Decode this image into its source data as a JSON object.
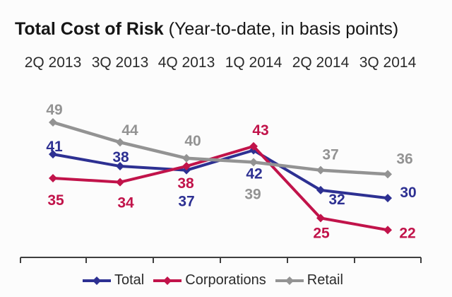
{
  "header": {
    "title_bold": "Total Cost of Risk",
    "title_rest": " (Year-to-date, in basis points)"
  },
  "chart_data": {
    "type": "line",
    "title": "Total Cost of Risk (Year-to-date, in basis points)",
    "categories": [
      "2Q 2013",
      "3Q 2013",
      "4Q 2013",
      "1Q 2014",
      "2Q 2014",
      "3Q 2014"
    ],
    "series": [
      {
        "name": "Total",
        "color": "#2d3092",
        "values": [
          41,
          38,
          37,
          42,
          32,
          30
        ]
      },
      {
        "name": "Corporations",
        "color": "#c1134a",
        "values": [
          35,
          34,
          38,
          43,
          25,
          22
        ]
      },
      {
        "name": "Retail",
        "color": "#939393",
        "values": [
          49,
          44,
          40,
          39,
          37,
          36
        ]
      }
    ],
    "legend_position": "bottom",
    "legend_labels": [
      "Total",
      "Corporations",
      "Retail"
    ],
    "grid": false,
    "value_labels_shown": true,
    "category_labels_position": "top",
    "x_axis_line_position": "bottom",
    "y_implied_range": [
      20,
      50
    ]
  },
  "colors": {
    "axis": "#3f3f3f",
    "category_text": "#2b2b2b",
    "title_text": "#161616"
  }
}
